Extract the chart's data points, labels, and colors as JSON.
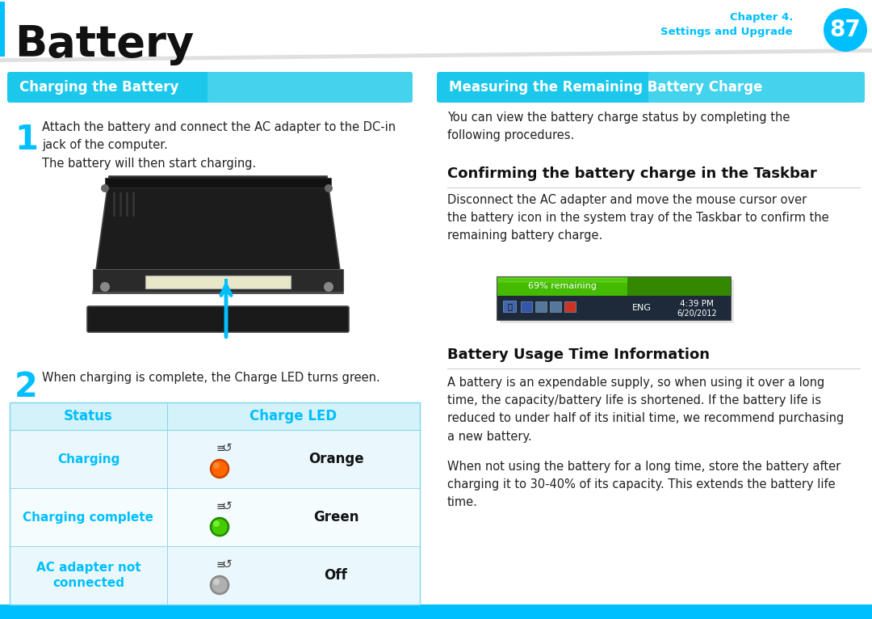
{
  "page_title": "Battery",
  "chapter_label": "Chapter 4.\nSettings and Upgrade",
  "page_number": "87",
  "bg_color": "#ffffff",
  "cyan_color": "#00BFFF",
  "cyan_mid": "#40D0F0",
  "cyan_light": "#DCF5FC",
  "cyan_header_grad_left": "#1AB8E0",
  "header_line_color": "#BBBBBB",
  "left_section_header": "Charging the Battery",
  "right_section_header": "Measuring the Remaining Battery Charge",
  "step1_number": "1",
  "step1_text": "Attach the battery and connect the AC adapter to the DC-in\njack of the computer.",
  "step1_sub": "The battery will then start charging.",
  "step2_number": "2",
  "step2_text": "When charging is complete, the Charge LED turns green.",
  "table_header_status": "Status",
  "table_header_led": "Charge LED",
  "table_rows": [
    {
      "status": "Charging",
      "color_name": "Orange",
      "led_color": "#FF6600",
      "led_border": "#CC4400",
      "led_inner": "#FF9944"
    },
    {
      "status": "Charging complete",
      "color_name": "Green",
      "led_color": "#44CC00",
      "led_border": "#228800",
      "led_inner": "#88FF44"
    },
    {
      "status": "AC adapter not\nconnected",
      "color_name": "Off",
      "led_color": "#B0B0B0",
      "led_border": "#888888",
      "led_inner": "#D8D8D8"
    }
  ],
  "right_intro": "You can view the battery charge status by completing the\nfollowing procedures.",
  "confirm_header": "Confirming the battery charge in the Taskbar",
  "confirm_text": "Disconnect the AC adapter and move the mouse cursor over\nthe battery icon in the system tray of the Taskbar to confirm the\nremaining battery charge.",
  "battery_usage_header": "Battery Usage Time Information",
  "battery_usage_text1": "A battery is an expendable supply, so when using it over a long\ntime, the capacity/battery life is shortened. If the battery life is\nreduced to under half of its initial time, we recommend purchasing\na new battery.",
  "battery_usage_text2": "When not using the battery for a long time, store the battery after\ncharging it to 30-40% of its capacity. This extends the battery life\ntime.",
  "taskbar_percent": "69% remaining",
  "taskbar_time": "4:39 PM",
  "taskbar_date": "6/20/2012"
}
